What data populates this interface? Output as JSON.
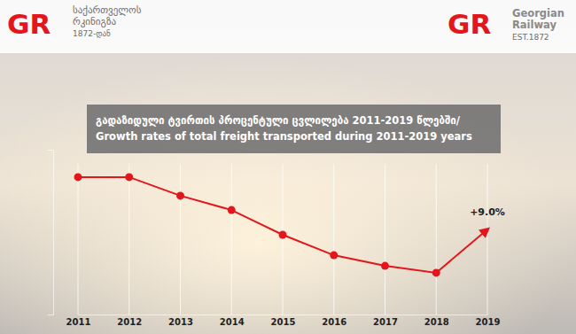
{
  "chart_data": {
    "type": "line",
    "title": [
      "გადაზიდული ტვირთის პროცენტული ცვლილება 2011-2019 წლებში/",
      "Growth rates of total freight transported during 2011-2019 years"
    ],
    "categories": [
      "2011",
      "2012",
      "2013",
      "2014",
      "2015",
      "2016",
      "2017",
      "2018",
      "2019"
    ],
    "values": [
      28.7,
      28.7,
      21.7,
      16.3,
      7.0,
      -0.7,
      -4.7,
      -7.3,
      9.0
    ],
    "value_labels": [
      null,
      null,
      null,
      null,
      null,
      null,
      null,
      null,
      "+9.0%"
    ],
    "data_labels": true,
    "color": "#e3161c",
    "marker": "circle",
    "ylim": [
      -23,
      39
    ],
    "yticks": [],
    "grid": true,
    "tick_labels": "x"
  },
  "header": {
    "left_logo": "GR",
    "left_text": [
      "საქართველოს",
      "რკინიგზა",
      "1872-დან"
    ],
    "right_logo": "GR",
    "right_text": [
      "Georgian",
      "Railway",
      "EST.1872"
    ]
  }
}
